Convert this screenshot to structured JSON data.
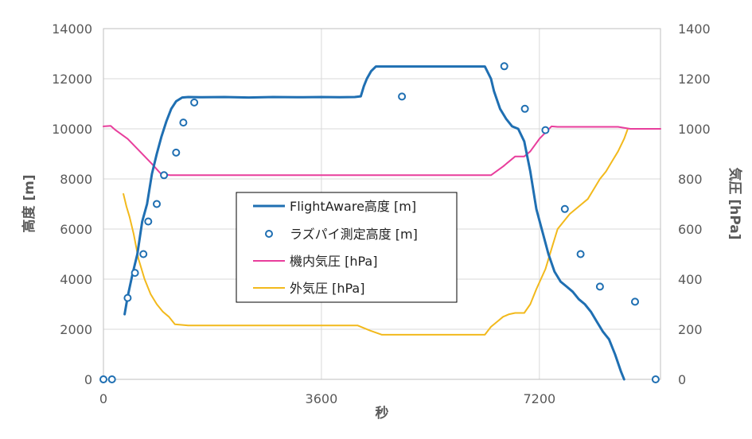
{
  "chart_data": {
    "type": "line",
    "xlabel": "秒",
    "ylabel_left": "高度 [m]",
    "ylabel_right": "気圧 [hPa]",
    "xlim": [
      0,
      9200
    ],
    "ylim_left": [
      0,
      14000
    ],
    "ylim_right": [
      0,
      1400
    ],
    "x_ticks": [
      0,
      3600,
      7200
    ],
    "y_ticks_left": [
      0,
      2000,
      4000,
      6000,
      8000,
      10000,
      12000,
      14000
    ],
    "y_ticks_right": [
      0,
      200,
      400,
      600,
      800,
      1000,
      1200,
      1400
    ],
    "grid": true,
    "legend_position": "center",
    "colors": {
      "flightaware": "#1f6fb2",
      "raspi": "#1f6fb2",
      "cabin": "#e83e9c",
      "outside": "#f2b91c",
      "grid": "#d9d9d9",
      "axis": "#bfbfbf"
    },
    "series": [
      {
        "name": "FlightAware高度 [m]",
        "axis": "left",
        "style": "line",
        "x": [
          350,
          400,
          480,
          560,
          640,
          720,
          800,
          880,
          960,
          1040,
          1120,
          1200,
          1300,
          1400,
          1600,
          2000,
          2400,
          2800,
          3200,
          3600,
          3900,
          4150,
          4250,
          4300,
          4350,
          4420,
          4500,
          4800,
          5200,
          5600,
          6000,
          6300,
          6400,
          6450,
          6550,
          6650,
          6750,
          6850,
          6950,
          7050,
          7150,
          7250,
          7350,
          7450,
          7550,
          7650,
          7750,
          7850,
          7950,
          8050,
          8150,
          8250,
          8350,
          8450,
          8550,
          8600
        ],
        "y": [
          2600,
          3300,
          4200,
          5000,
          6300,
          7000,
          8200,
          9000,
          9700,
          10300,
          10800,
          11100,
          11250,
          11270,
          11260,
          11270,
          11250,
          11270,
          11260,
          11270,
          11260,
          11270,
          11300,
          11700,
          12000,
          12300,
          12490,
          12490,
          12490,
          12490,
          12490,
          12490,
          12000,
          11500,
          10800,
          10400,
          10100,
          10000,
          9500,
          8300,
          6800,
          5900,
          5000,
          4300,
          3900,
          3700,
          3500,
          3200,
          3000,
          2700,
          2300,
          1900,
          1600,
          1000,
          300,
          0
        ]
      },
      {
        "name": "ラズパイ測定高度 [m]",
        "axis": "left",
        "style": "marker",
        "x": [
          0,
          140,
          400,
          520,
          660,
          740,
          880,
          1000,
          1200,
          1320,
          1500,
          4930,
          6620,
          6960,
          7300,
          7620,
          7880,
          8200,
          8780,
          9120
        ],
        "y": [
          0,
          0,
          3250,
          4250,
          5000,
          6300,
          7000,
          8150,
          9050,
          10250,
          11050,
          11290,
          12500,
          10800,
          9950,
          6800,
          5000,
          3700,
          3100,
          0
        ]
      },
      {
        "name": "機内気圧 [hPa]",
        "axis": "right",
        "style": "line",
        "x": [
          0,
          120,
          200,
          400,
          600,
          800,
          950,
          1100,
          2000,
          3000,
          4000,
          5000,
          6000,
          6400,
          6600,
          6800,
          6950,
          7050,
          7200,
          7400,
          7500,
          8000,
          8500,
          8700,
          9200
        ],
        "y": [
          1010,
          1012,
          995,
          960,
          910,
          860,
          820,
          815,
          815,
          815,
          815,
          815,
          815,
          815,
          850,
          890,
          890,
          910,
          960,
          1010,
          1008,
          1008,
          1008,
          1000,
          1000
        ]
      },
      {
        "name": "外気圧 [hPa]",
        "axis": "right",
        "style": "line",
        "x": [
          330,
          380,
          430,
          500,
          580,
          680,
          780,
          880,
          980,
          1080,
          1180,
          1400,
          2000,
          3000,
          4000,
          4200,
          4400,
          4600,
          5000,
          5600,
          6000,
          6300,
          6400,
          6500,
          6600,
          6700,
          6800,
          6950,
          7050,
          7150,
          7300,
          7400,
          7500,
          7700,
          7900,
          8000,
          8100,
          8200,
          8300,
          8400,
          8500,
          8600,
          8660
        ],
        "y": [
          740,
          690,
          650,
          580,
          480,
          400,
          340,
          300,
          270,
          250,
          220,
          215,
          215,
          215,
          215,
          215,
          195,
          178,
          178,
          178,
          178,
          178,
          210,
          230,
          250,
          260,
          265,
          265,
          300,
          360,
          440,
          520,
          600,
          660,
          700,
          720,
          760,
          800,
          830,
          870,
          910,
          960,
          1000
        ]
      }
    ]
  }
}
